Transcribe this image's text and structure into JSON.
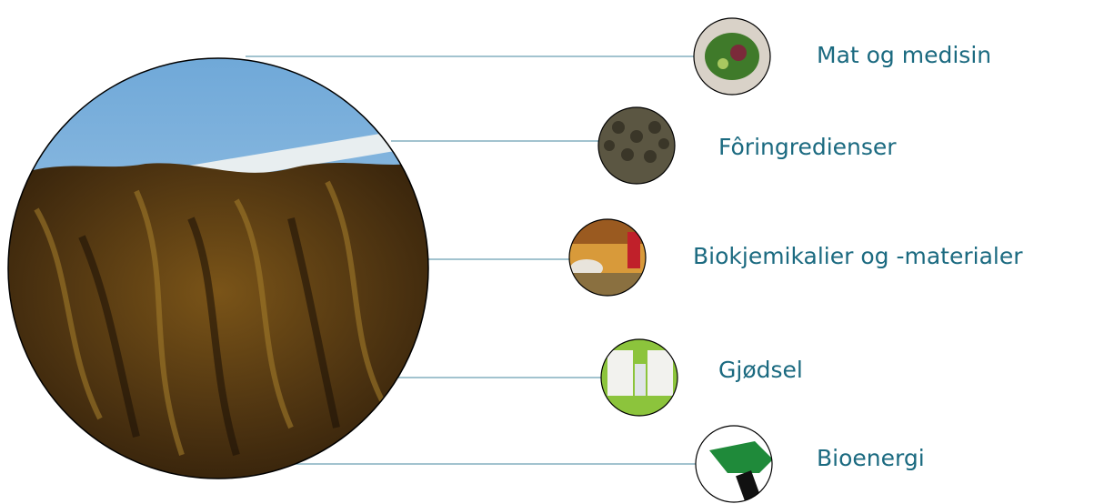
{
  "nodes": [
    {
      "label": "Mat og medisin"
    },
    {
      "label": "Fôringredienser"
    },
    {
      "label": "Biokjemikalier og -materialer"
    },
    {
      "label": "Gjødsel"
    },
    {
      "label": "Bioenergi"
    }
  ]
}
